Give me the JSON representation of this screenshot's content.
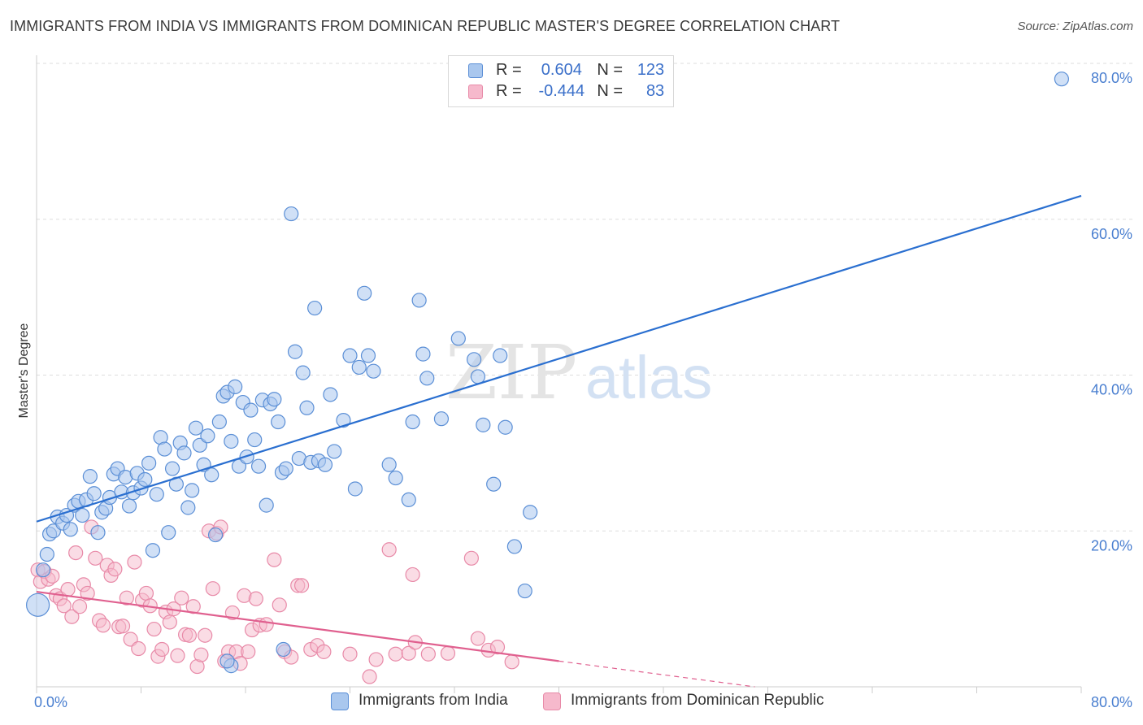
{
  "title": "IMMIGRANTS FROM INDIA VS IMMIGRANTS FROM DOMINICAN REPUBLIC MASTER'S DEGREE CORRELATION CHART",
  "source": "Source: ZipAtlas.com",
  "watermark": {
    "zip": "ZIP",
    "atlas": "atlas"
  },
  "legend": {
    "india": {
      "r_label": "R =",
      "r_value": "0.604",
      "n_label": "N =",
      "n_value": "123"
    },
    "dominican": {
      "r_label": "R =",
      "r_value": "-0.444",
      "n_label": "N =",
      "n_value": "83"
    }
  },
  "bottom_legend": {
    "india": "Immigrants from India",
    "dominican": "Immigrants from Dominican Republic"
  },
  "colors": {
    "india_fill": "#a9c7ee",
    "india_stroke": "#5b8fd6",
    "india_line": "#2a6fd0",
    "dominican_fill": "#f6b9cc",
    "dominican_stroke": "#e88aa8",
    "dominican_line": "#e0608f",
    "tick": "#4a7fd0",
    "grid": "#dddddd"
  },
  "chart_data": {
    "type": "scatter",
    "title": "IMMIGRANTS FROM INDIA VS IMMIGRANTS FROM DOMINICAN REPUBLIC MASTER'S DEGREE CORRELATION CHART",
    "xlabel": "",
    "ylabel": "Master's Degree",
    "xlim": [
      0,
      80
    ],
    "ylim": [
      0,
      80
    ],
    "x_tick_labels": [
      "0.0%",
      "80.0%"
    ],
    "y_ticks": [
      20,
      40,
      60,
      80
    ],
    "y_tick_labels": [
      "20.0%",
      "40.0%",
      "60.0%",
      "80.0%"
    ],
    "grid": true,
    "legend_position": "top-center",
    "series": [
      {
        "name": "Immigrants from India",
        "r": 0.604,
        "n": 123,
        "trend": {
          "x": [
            0,
            80
          ],
          "y": [
            21.2,
            63.0
          ]
        },
        "points": [
          [
            0.1,
            10.5
          ],
          [
            0.5,
            15
          ],
          [
            0.8,
            17
          ],
          [
            1,
            19.6
          ],
          [
            1.3,
            20
          ],
          [
            1.6,
            21.8
          ],
          [
            2,
            21
          ],
          [
            2.3,
            22
          ],
          [
            2.6,
            20.2
          ],
          [
            2.9,
            23.3
          ],
          [
            3.2,
            23.8
          ],
          [
            3.5,
            22
          ],
          [
            3.8,
            24
          ],
          [
            4.1,
            27
          ],
          [
            4.4,
            24.8
          ],
          [
            4.7,
            19.8
          ],
          [
            5,
            22.4
          ],
          [
            5.3,
            22.9
          ],
          [
            5.6,
            24.3
          ],
          [
            5.9,
            27.3
          ],
          [
            6.2,
            28
          ],
          [
            6.5,
            25
          ],
          [
            6.8,
            26.9
          ],
          [
            7.1,
            23.2
          ],
          [
            7.4,
            24.9
          ],
          [
            7.7,
            27.4
          ],
          [
            8,
            25.5
          ],
          [
            8.3,
            26.6
          ],
          [
            8.6,
            28.7
          ],
          [
            8.9,
            17.5
          ],
          [
            9.2,
            24.7
          ],
          [
            9.5,
            32
          ],
          [
            9.8,
            30.5
          ],
          [
            10.1,
            19.8
          ],
          [
            10.4,
            28
          ],
          [
            10.7,
            26
          ],
          [
            11,
            31.3
          ],
          [
            11.3,
            30
          ],
          [
            11.6,
            23
          ],
          [
            11.9,
            25.2
          ],
          [
            12.2,
            33.2
          ],
          [
            12.5,
            31
          ],
          [
            12.8,
            28.5
          ],
          [
            13.1,
            32.2
          ],
          [
            13.4,
            27.2
          ],
          [
            13.7,
            19.5
          ],
          [
            14,
            34
          ],
          [
            14.3,
            37.3
          ],
          [
            14.6,
            37.8
          ],
          [
            14.9,
            31.5
          ],
          [
            15.2,
            38.5
          ],
          [
            15.5,
            28.3
          ],
          [
            15.8,
            36.5
          ],
          [
            16.1,
            29.5
          ],
          [
            16.4,
            35.5
          ],
          [
            16.7,
            31.7
          ],
          [
            17,
            28.3
          ],
          [
            17.3,
            36.8
          ],
          [
            17.6,
            23.3
          ],
          [
            17.9,
            36.3
          ],
          [
            18.2,
            36.9
          ],
          [
            18.5,
            34
          ],
          [
            18.8,
            27.5
          ],
          [
            19.1,
            28
          ],
          [
            19.5,
            60.7
          ],
          [
            19.8,
            43
          ],
          [
            20.1,
            29.3
          ],
          [
            20.4,
            40.3
          ],
          [
            20.7,
            35.8
          ],
          [
            21,
            28.8
          ],
          [
            21.3,
            48.6
          ],
          [
            21.6,
            29
          ],
          [
            22.1,
            28.5
          ],
          [
            22.5,
            37.5
          ],
          [
            22.8,
            30.2
          ],
          [
            23.5,
            34.2
          ],
          [
            24,
            42.5
          ],
          [
            24.4,
            25.4
          ],
          [
            24.7,
            41
          ],
          [
            25.1,
            50.5
          ],
          [
            25.4,
            42.5
          ],
          [
            25.8,
            40.5
          ],
          [
            27,
            28.5
          ],
          [
            27.5,
            26.8
          ],
          [
            28.5,
            24
          ],
          [
            28.8,
            34
          ],
          [
            29.3,
            49.6
          ],
          [
            29.6,
            42.7
          ],
          [
            29.9,
            39.6
          ],
          [
            31,
            34.4
          ],
          [
            32.3,
            44.7
          ],
          [
            33.5,
            42
          ],
          [
            33.8,
            39.8
          ],
          [
            34.2,
            33.6
          ],
          [
            35,
            26
          ],
          [
            35.5,
            42.5
          ],
          [
            35.9,
            33.3
          ],
          [
            36.6,
            18
          ],
          [
            37.4,
            12.3
          ],
          [
            37.8,
            22.4
          ],
          [
            78.5,
            78
          ],
          [
            18.9,
            4.8
          ],
          [
            14.9,
            2.7
          ],
          [
            14.6,
            3.3
          ]
        ]
      },
      {
        "name": "Immigrants from Dominican Republic",
        "r": -0.444,
        "n": 83,
        "trend": {
          "x": [
            0,
            40
          ],
          "y": [
            12.2,
            3.3
          ]
        },
        "trend_dashed": {
          "x": [
            40,
            55
          ],
          "y": [
            3.3,
            0
          ]
        },
        "points": [
          [
            0.1,
            15
          ],
          [
            0.3,
            13.5
          ],
          [
            0.6,
            14.8
          ],
          [
            0.9,
            13.8
          ],
          [
            1.2,
            14.2
          ],
          [
            1.5,
            11.7
          ],
          [
            1.8,
            11.3
          ],
          [
            2.1,
            10.4
          ],
          [
            2.4,
            12.5
          ],
          [
            2.7,
            9
          ],
          [
            3,
            17.2
          ],
          [
            3.3,
            10.3
          ],
          [
            3.6,
            13.1
          ],
          [
            3.9,
            12
          ],
          [
            4.2,
            20.5
          ],
          [
            4.5,
            16.5
          ],
          [
            4.8,
            8.5
          ],
          [
            5.1,
            7.9
          ],
          [
            5.4,
            15.6
          ],
          [
            5.7,
            14.3
          ],
          [
            6,
            15.1
          ],
          [
            6.3,
            7.7
          ],
          [
            6.6,
            7.8
          ],
          [
            6.9,
            11.4
          ],
          [
            7.2,
            6.1
          ],
          [
            7.5,
            16
          ],
          [
            7.8,
            4.9
          ],
          [
            8.1,
            11.1
          ],
          [
            8.4,
            12
          ],
          [
            8.7,
            10.4
          ],
          [
            9,
            7.4
          ],
          [
            9.3,
            3.9
          ],
          [
            9.6,
            4.8
          ],
          [
            9.9,
            9.6
          ],
          [
            10.2,
            8.3
          ],
          [
            10.5,
            10
          ],
          [
            10.8,
            4
          ],
          [
            11.1,
            11.4
          ],
          [
            11.4,
            6.7
          ],
          [
            11.7,
            6.6
          ],
          [
            12,
            10.3
          ],
          [
            12.3,
            2.6
          ],
          [
            12.6,
            4.1
          ],
          [
            12.9,
            6.6
          ],
          [
            13.2,
            20
          ],
          [
            13.5,
            12.6
          ],
          [
            13.8,
            19.7
          ],
          [
            14.1,
            20.5
          ],
          [
            14.4,
            3.3
          ],
          [
            14.7,
            4.5
          ],
          [
            15,
            9.5
          ],
          [
            15.3,
            4.5
          ],
          [
            15.6,
            3
          ],
          [
            15.9,
            11.7
          ],
          [
            16.2,
            4.5
          ],
          [
            16.5,
            7.3
          ],
          [
            16.8,
            11.3
          ],
          [
            17.1,
            7.9
          ],
          [
            17.6,
            8
          ],
          [
            18.2,
            16.3
          ],
          [
            18.6,
            10.5
          ],
          [
            19,
            4.5
          ],
          [
            19.5,
            3.8
          ],
          [
            20,
            13
          ],
          [
            20.3,
            13
          ],
          [
            21,
            4.8
          ],
          [
            21.5,
            5.3
          ],
          [
            22,
            4.5
          ],
          [
            24,
            4.2
          ],
          [
            25.5,
            1.3
          ],
          [
            26,
            3.5
          ],
          [
            27,
            17.6
          ],
          [
            27.5,
            4.2
          ],
          [
            28.5,
            4.3
          ],
          [
            28.8,
            14.4
          ],
          [
            29,
            5.7
          ],
          [
            30,
            4.2
          ],
          [
            31.5,
            4.3
          ],
          [
            33.3,
            16.5
          ],
          [
            33.8,
            6.2
          ],
          [
            34.6,
            4.7
          ],
          [
            35.3,
            5.1
          ],
          [
            36.4,
            3.2
          ]
        ]
      }
    ]
  }
}
